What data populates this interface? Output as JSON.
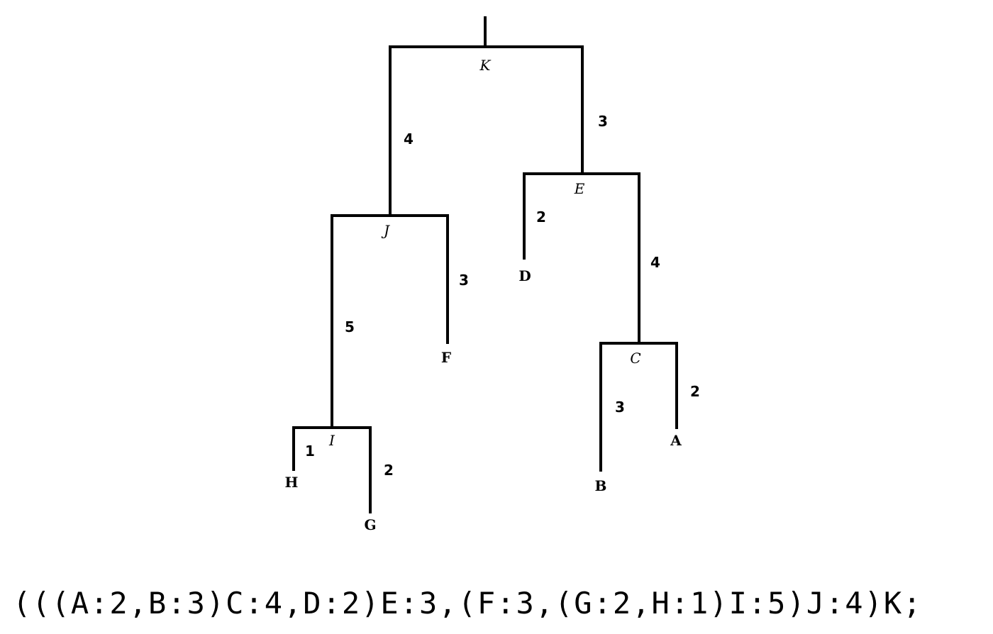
{
  "tree": {
    "root": "K",
    "nodes": {
      "K": {
        "type": "internal",
        "label": "K",
        "children": [
          "J",
          "E"
        ]
      },
      "J": {
        "type": "internal",
        "label": "J",
        "length": 4,
        "children": [
          "I",
          "F"
        ]
      },
      "E": {
        "type": "internal",
        "label": "E",
        "length": 3,
        "children": [
          "D",
          "C"
        ]
      },
      "I": {
        "type": "internal",
        "label": "I",
        "length": 5,
        "children": [
          "H",
          "G"
        ]
      },
      "F": {
        "type": "leaf",
        "label": "F",
        "length": 3
      },
      "D": {
        "type": "leaf",
        "label": "D",
        "length": 2
      },
      "C": {
        "type": "internal",
        "label": "C",
        "length": 4,
        "children": [
          "B",
          "A"
        ]
      },
      "H": {
        "type": "leaf",
        "label": "H",
        "length": 1
      },
      "G": {
        "type": "leaf",
        "label": "G",
        "length": 2
      },
      "B": {
        "type": "leaf",
        "label": "B",
        "length": 3
      },
      "A": {
        "type": "leaf",
        "label": "A",
        "length": 2
      }
    }
  },
  "newick": "(((A:2,B:3)C:4,D:2)E:3,(F:3,(G:2,H:1)I:5)J:4)K;",
  "colors": {
    "line": "#000000",
    "background": "#ffffff"
  }
}
